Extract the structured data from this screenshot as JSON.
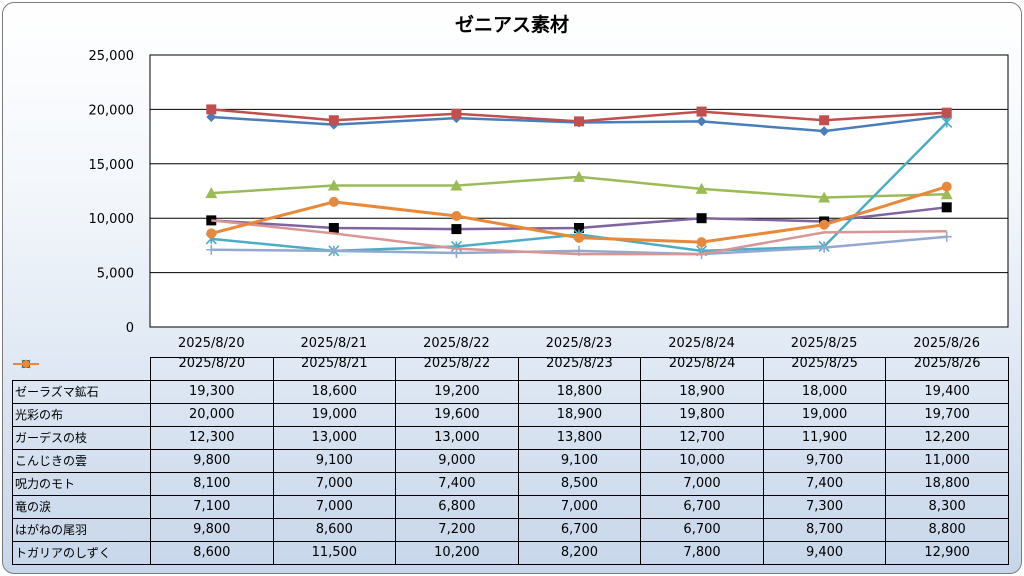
{
  "chart_data": {
    "type": "line",
    "title": "ゼニアス素材",
    "categories": [
      "2025/8/20",
      "2025/8/21",
      "2025/8/22",
      "2025/8/23",
      "2025/8/24",
      "2025/8/25",
      "2025/8/26"
    ],
    "ylim": [
      0,
      25000
    ],
    "yticks": [
      "0",
      "5,000",
      "10,000",
      "15,000",
      "20,000",
      "25,000"
    ],
    "grid": true,
    "legend": "data-table",
    "series": [
      {
        "name": "ゼーラズマ鉱石",
        "values": [
          19300,
          18600,
          19200,
          18800,
          18900,
          18000,
          19400
        ],
        "labels": [
          "19,300",
          "18,600",
          "19,200",
          "18,800",
          "18,900",
          "18,000",
          "19,400"
        ],
        "color": "#4a7ebb",
        "marker": "diamond"
      },
      {
        "name": "光彩の布",
        "values": [
          20000,
          19000,
          19600,
          18900,
          19800,
          19000,
          19700
        ],
        "labels": [
          "20,000",
          "19,000",
          "19,600",
          "18,900",
          "19,800",
          "19,000",
          "19,700"
        ],
        "color": "#c0504d",
        "marker": "square"
      },
      {
        "name": "ガーデスの枝",
        "values": [
          12300,
          13000,
          13000,
          13800,
          12700,
          11900,
          12200
        ],
        "labels": [
          "12,300",
          "13,000",
          "13,000",
          "13,800",
          "12,700",
          "11,900",
          "12,200"
        ],
        "color": "#9bbb59",
        "marker": "triangle"
      },
      {
        "name": "こんじきの雲",
        "values": [
          9800,
          9100,
          9000,
          9100,
          10000,
          9700,
          11000
        ],
        "labels": [
          "9,800",
          "9,100",
          "9,000",
          "9,100",
          "10,000",
          "9,700",
          "11,000"
        ],
        "color": "#8064a2",
        "marker": "square-black"
      },
      {
        "name": "呪力のモト",
        "values": [
          8100,
          7000,
          7400,
          8500,
          7000,
          7400,
          18800
        ],
        "labels": [
          "8,100",
          "7,000",
          "7,400",
          "8,500",
          "7,000",
          "7,400",
          "18,800"
        ],
        "color": "#4bacc6",
        "marker": "star"
      },
      {
        "name": "竜の涙",
        "values": [
          7100,
          7000,
          6800,
          7000,
          6700,
          7300,
          8300
        ],
        "labels": [
          "7,100",
          "7,000",
          "6,800",
          "7,000",
          "6,700",
          "7,300",
          "8,300"
        ],
        "color": "#93a9cf",
        "marker": "plus"
      },
      {
        "name": "はがねの尾羽",
        "values": [
          9800,
          8600,
          7200,
          6700,
          6700,
          8700,
          8800
        ],
        "labels": [
          "9,800",
          "8,600",
          "7,200",
          "6,700",
          "6,700",
          "8,700",
          "8,800"
        ],
        "color": "#d99594",
        "marker": "none"
      },
      {
        "name": "トガリアのしずく",
        "values": [
          8600,
          11500,
          10200,
          8200,
          7800,
          9400,
          12900
        ],
        "labels": [
          "8,600",
          "11,500",
          "10,200",
          "8,200",
          "7,800",
          "9,400",
          "12,900"
        ],
        "color": "#e8883a",
        "marker": "circle"
      }
    ]
  }
}
